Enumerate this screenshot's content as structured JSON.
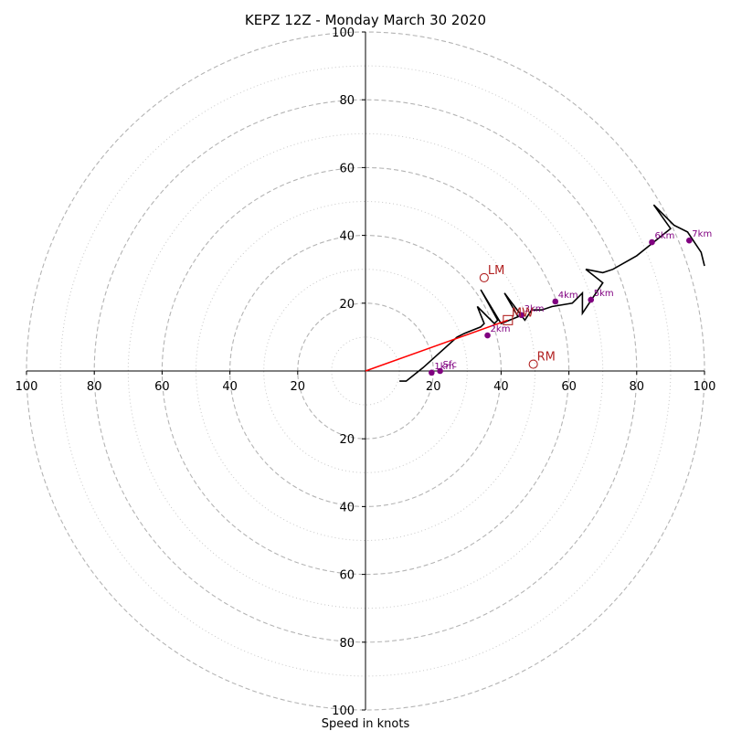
{
  "chart_data": {
    "type": "hodograph",
    "title": "KEPZ 12Z - Monday March 30 2020",
    "xlabel": "Speed in knots",
    "xlim": [
      -100,
      100
    ],
    "ylim": [
      -100,
      100
    ],
    "grid": {
      "major_rings": [
        20,
        40,
        60,
        80,
        100
      ],
      "minor_rings": [
        10,
        30,
        50,
        70,
        90
      ],
      "major_style": "dashed",
      "minor_style": "dotted"
    },
    "tick_labels": [
      "100",
      "80",
      "60",
      "40",
      "20",
      "20",
      "40",
      "60",
      "80",
      "100"
    ],
    "tick_values": [
      -100,
      -80,
      -60,
      -40,
      -20,
      20,
      40,
      60,
      80,
      100
    ],
    "trace": {
      "color": "#000000",
      "points": [
        [
          10,
          -3
        ],
        [
          12,
          -3
        ],
        [
          17,
          1
        ],
        [
          27,
          10
        ],
        [
          29,
          11
        ],
        [
          34,
          13
        ],
        [
          35,
          14
        ],
        [
          33,
          19
        ],
        [
          38,
          14
        ],
        [
          39,
          15
        ],
        [
          34,
          24
        ],
        [
          40,
          14
        ],
        [
          45,
          16
        ],
        [
          41,
          23
        ],
        [
          47,
          15
        ],
        [
          49,
          18
        ],
        [
          52,
          18
        ],
        [
          55,
          19
        ],
        [
          61,
          20
        ],
        [
          64,
          23
        ],
        [
          64,
          17
        ],
        [
          70,
          26
        ],
        [
          65,
          30
        ],
        [
          70,
          29
        ],
        [
          73,
          30
        ],
        [
          80,
          34
        ],
        [
          85,
          38
        ],
        [
          90,
          42
        ],
        [
          85,
          49
        ],
        [
          91,
          43
        ],
        [
          95,
          41
        ],
        [
          99,
          35
        ],
        [
          100,
          31
        ]
      ]
    },
    "height_markers": {
      "color": "#800080",
      "points": [
        {
          "label": "Sfc",
          "u": 22,
          "v": 0
        },
        {
          "label": "1km",
          "u": 19.5,
          "v": -0.5
        },
        {
          "label": "2km",
          "u": 36,
          "v": 10.5
        },
        {
          "label": "3km",
          "u": 46,
          "v": 16.5
        },
        {
          "label": "4km",
          "u": 56,
          "v": 20.5
        },
        {
          "label": "5km",
          "u": 66.5,
          "v": 21
        },
        {
          "label": "6km",
          "u": 84.5,
          "v": 38
        },
        {
          "label": "7km",
          "u": 95.5,
          "v": 38.5
        }
      ]
    },
    "storm_motions": {
      "color": "#b22222",
      "points": [
        {
          "label": "LM",
          "u": 35,
          "v": 27.5,
          "marker": "circle"
        },
        {
          "label": "RM",
          "u": 49.5,
          "v": 2,
          "marker": "circle"
        },
        {
          "label": "MW",
          "u": 42,
          "v": 15,
          "marker": "square"
        }
      ]
    },
    "shear_vector": {
      "color": "#ff0000",
      "from": [
        0,
        0
      ],
      "to": [
        42,
        15
      ]
    }
  }
}
